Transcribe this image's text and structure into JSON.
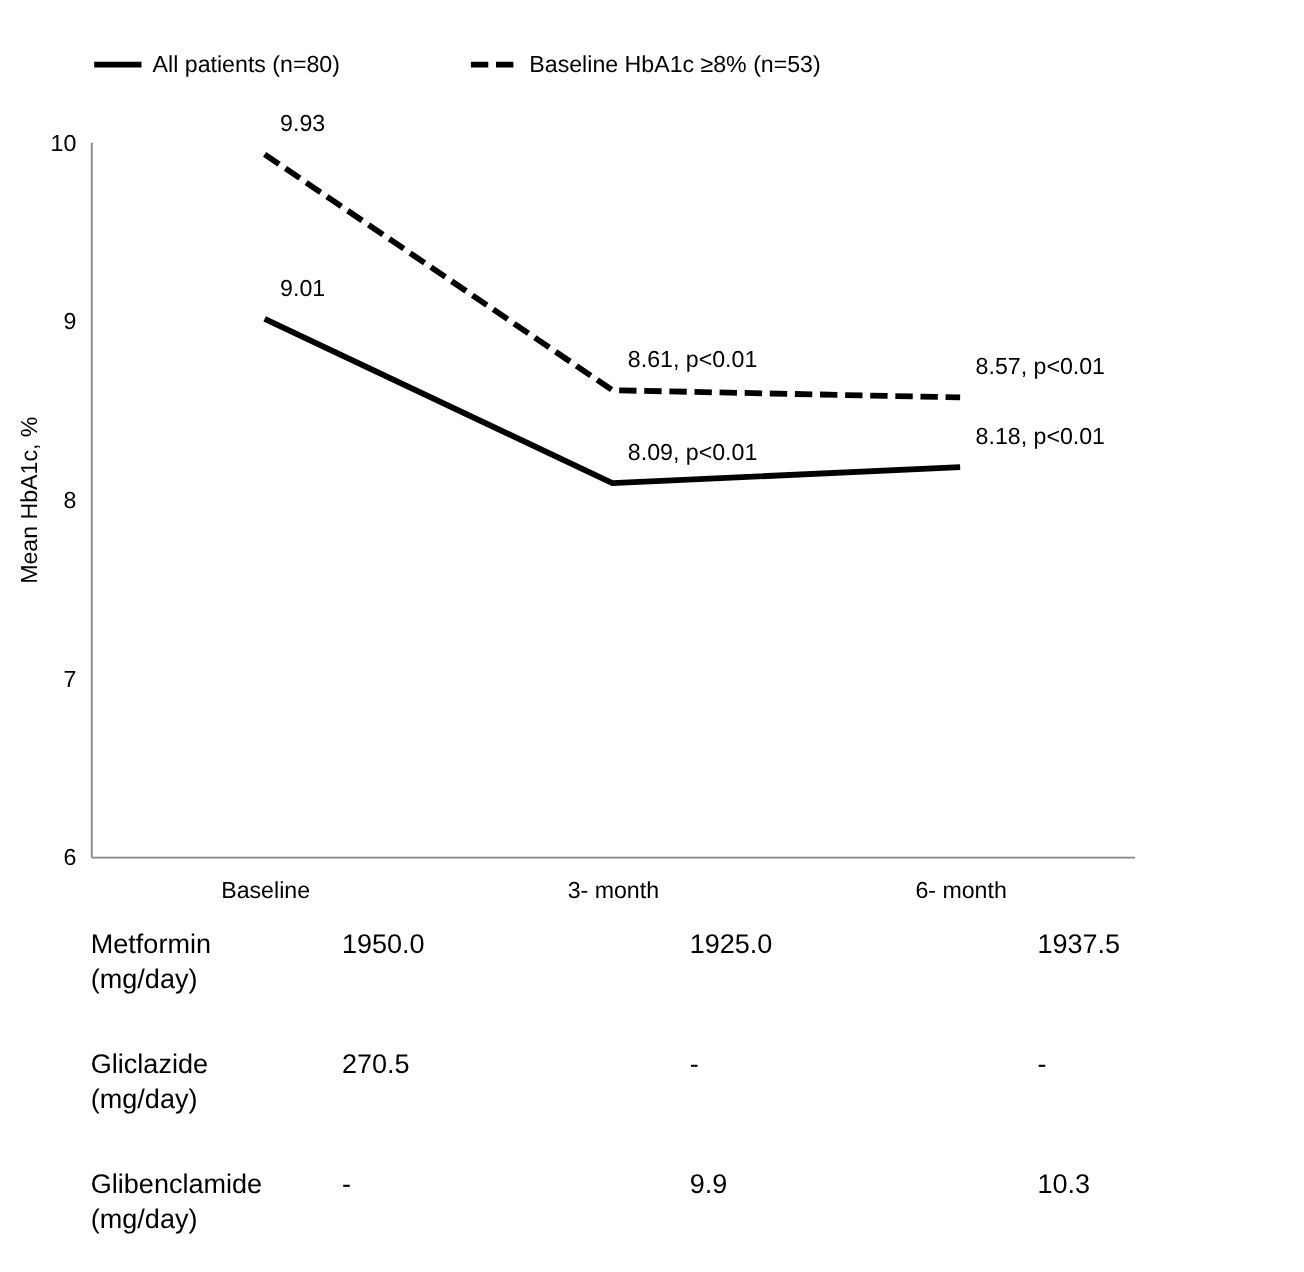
{
  "chart_data": [
    {
      "type": "line",
      "ylabel": "Mean HbA1c, %",
      "categories": [
        "Baseline",
        "3- month",
        "6- month"
      ],
      "series": [
        {
          "name": "All patients (n=80)",
          "color": "#000000",
          "line_style": "solid",
          "values": [
            9.01,
            8.09,
            8.18
          ],
          "value_labels": [
            "9.01",
            "8.09, p<0.01",
            "8.18, p<0.01"
          ]
        },
        {
          "name": "Baseline HbA1c ≥8% (n=53)",
          "color": "#000000",
          "line_style": "dashed",
          "values": [
            9.93,
            8.61,
            8.57
          ],
          "value_labels": [
            "9.93",
            "8.61, p<0.01",
            "8.57, p<0.01"
          ]
        }
      ],
      "ylim": [
        6,
        10
      ],
      "yticks": [
        6,
        7,
        8,
        9,
        10
      ],
      "grid": false,
      "legend": "top",
      "marker": "none"
    },
    {
      "type": "other",
      "annotations": [
        "Metformin (mg/day)",
        "1950.0",
        "1925.0",
        "1937.5",
        "Gliclazide (mg/day)",
        "270.5",
        "-",
        "-",
        "Glibenclamide (mg/day)",
        "-",
        "9.9",
        "10.3"
      ]
    }
  ]
}
